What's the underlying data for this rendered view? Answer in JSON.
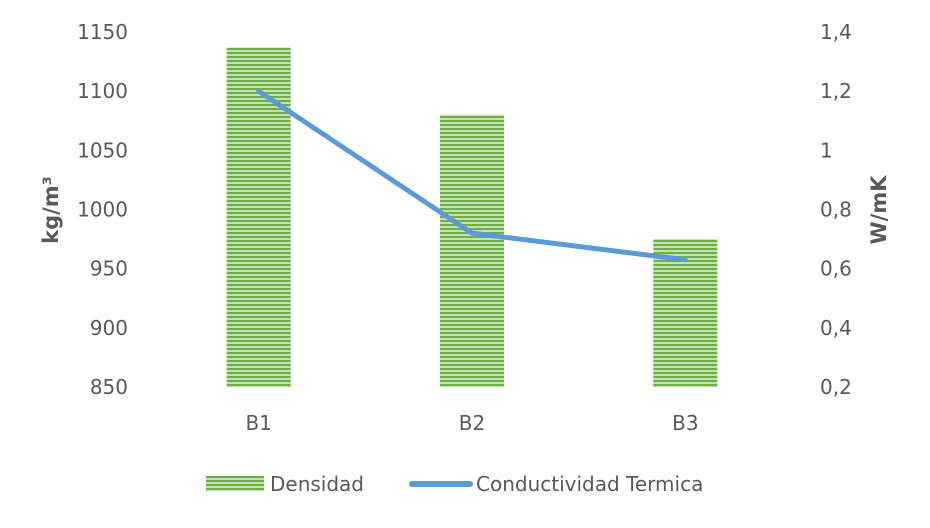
{
  "chart_data": {
    "type": "bar",
    "categories": [
      "B1",
      "B2",
      "B3"
    ],
    "series": [
      {
        "name": "Densidad",
        "type": "bar",
        "axis": "left",
        "values": [
          1137,
          1080,
          975
        ],
        "color": "#70ad47",
        "pattern": "horizontal-stripes"
      },
      {
        "name": "Conductividad Termica",
        "type": "line",
        "axis": "right",
        "values": [
          1.2,
          0.72,
          0.63
        ],
        "color": "#5b9bd5"
      }
    ],
    "ylabel": "kg/m³",
    "ylim": [
      850,
      1150
    ],
    "yticks": [
      "850",
      "900",
      "950",
      "1000",
      "1050",
      "1100",
      "1150"
    ],
    "y2label": "W/mK",
    "y2lim": [
      0.2,
      1.4
    ],
    "y2ticks": [
      "0,2",
      "0,4",
      "0,6",
      "0,8",
      "1",
      "1,2",
      "1,4"
    ],
    "grid": false,
    "legend": "bottom"
  }
}
